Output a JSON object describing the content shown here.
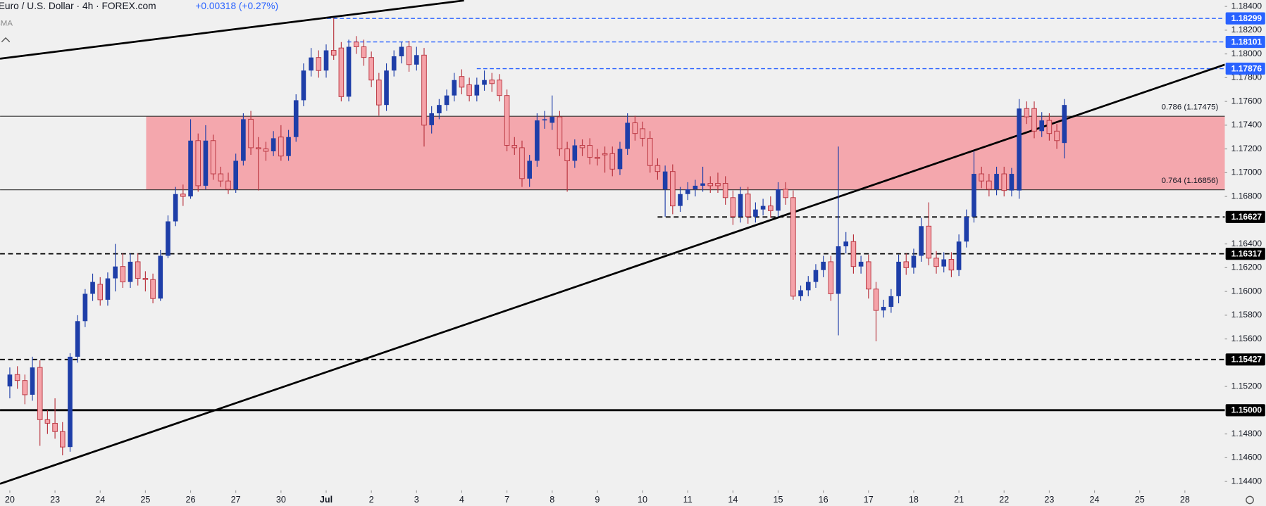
{
  "header": {
    "title": "Euro / U.S. Dollar · 4h · FOREX.com",
    "change": "+0.00318 (+0.27%)",
    "indicator": "SMA"
  },
  "chart_data": {
    "type": "candlestick",
    "up_color": "#1e3ea8",
    "down_color": "#f5a3a9",
    "down_edge": "#b8323d",
    "ohlc": [
      [
        1.152,
        1.1536,
        1.151,
        1.153
      ],
      [
        1.153,
        1.1537,
        1.1518,
        1.1525
      ],
      [
        1.1525,
        1.153,
        1.1505,
        1.1513
      ],
      [
        1.1513,
        1.1545,
        1.1508,
        1.1536
      ],
      [
        1.1536,
        1.1542,
        1.147,
        1.1492
      ],
      [
        1.1492,
        1.15,
        1.148,
        1.1489
      ],
      [
        1.1489,
        1.151,
        1.1476,
        1.1482
      ],
      [
        1.1482,
        1.149,
        1.1462,
        1.1469
      ],
      [
        1.1469,
        1.1548,
        1.1465,
        1.1545
      ],
      [
        1.1545,
        1.158,
        1.154,
        1.1575
      ],
      [
        1.1575,
        1.1602,
        1.157,
        1.1598
      ],
      [
        1.1598,
        1.1615,
        1.1592,
        1.1608
      ],
      [
        1.1606,
        1.1612,
        1.1588,
        1.1593
      ],
      [
        1.1593,
        1.1616,
        1.1588,
        1.1611
      ],
      [
        1.1611,
        1.164,
        1.16,
        1.1621
      ],
      [
        1.1621,
        1.1632,
        1.1603,
        1.1608
      ],
      [
        1.1608,
        1.1632,
        1.1603,
        1.1625
      ],
      [
        1.1625,
        1.1632,
        1.1605,
        1.1611
      ],
      [
        1.1611,
        1.1617,
        1.16,
        1.161
      ],
      [
        1.161,
        1.1615,
        1.159,
        1.1594
      ],
      [
        1.1594,
        1.1635,
        1.1592,
        1.163
      ],
      [
        1.163,
        1.1664,
        1.1628,
        1.1659
      ],
      [
        1.1659,
        1.1688,
        1.1655,
        1.1682
      ],
      [
        1.1682,
        1.169,
        1.1672,
        1.168
      ],
      [
        1.168,
        1.1745,
        1.1678,
        1.1727
      ],
      [
        1.1727,
        1.1733,
        1.1684,
        1.1689
      ],
      [
        1.1689,
        1.174,
        1.1686,
        1.1727
      ],
      [
        1.1727,
        1.1732,
        1.1694,
        1.1699
      ],
      [
        1.1699,
        1.1705,
        1.1688,
        1.1693
      ],
      [
        1.1693,
        1.17,
        1.1682,
        1.1686
      ],
      [
        1.1686,
        1.1716,
        1.1683,
        1.171
      ],
      [
        1.171,
        1.175,
        1.1706,
        1.1745
      ],
      [
        1.1745,
        1.1752,
        1.1715,
        1.1721
      ],
      [
        1.1721,
        1.173,
        1.1685,
        1.172
      ],
      [
        1.172,
        1.1726,
        1.171,
        1.1718
      ],
      [
        1.1718,
        1.1735,
        1.1714,
        1.1729
      ],
      [
        1.173,
        1.174,
        1.171,
        1.1714
      ],
      [
        1.1714,
        1.1736,
        1.171,
        1.173
      ],
      [
        1.173,
        1.1766,
        1.1726,
        1.1761
      ],
      [
        1.1761,
        1.1792,
        1.1756,
        1.1786
      ],
      [
        1.1786,
        1.1805,
        1.1781,
        1.1797
      ],
      [
        1.1797,
        1.1803,
        1.178,
        1.1786
      ],
      [
        1.1786,
        1.1808,
        1.178,
        1.1803
      ],
      [
        1.1803,
        1.183,
        1.1795,
        1.1799
      ],
      [
        1.1805,
        1.181,
        1.176,
        1.1764
      ],
      [
        1.1764,
        1.1812,
        1.176,
        1.1806
      ],
      [
        1.181,
        1.1815,
        1.18,
        1.1806
      ],
      [
        1.1806,
        1.1812,
        1.179,
        1.1797
      ],
      [
        1.1797,
        1.1802,
        1.1772,
        1.1778
      ],
      [
        1.1778,
        1.1784,
        1.1748,
        1.1757
      ],
      [
        1.1757,
        1.1792,
        1.1752,
        1.1786
      ],
      [
        1.1786,
        1.1803,
        1.1781,
        1.1798
      ],
      [
        1.1798,
        1.181,
        1.1792,
        1.1806
      ],
      [
        1.1806,
        1.1811,
        1.1785,
        1.1791
      ],
      [
        1.1791,
        1.1806,
        1.1786,
        1.1799
      ],
      [
        1.1799,
        1.1805,
        1.1722,
        1.174
      ],
      [
        1.174,
        1.1756,
        1.1733,
        1.175
      ],
      [
        1.175,
        1.1762,
        1.1745,
        1.1757
      ],
      [
        1.1757,
        1.177,
        1.1752,
        1.1765
      ],
      [
        1.1765,
        1.1784,
        1.176,
        1.1778
      ],
      [
        1.1781,
        1.1787,
        1.1766,
        1.1772
      ],
      [
        1.1774,
        1.178,
        1.176,
        1.1765
      ],
      [
        1.1765,
        1.178,
        1.176,
        1.1774
      ],
      [
        1.1774,
        1.1786,
        1.1769,
        1.1778
      ],
      [
        1.1778,
        1.1784,
        1.1768,
        1.1775
      ],
      [
        1.1778,
        1.1783,
        1.176,
        1.1765
      ],
      [
        1.1765,
        1.177,
        1.1718,
        1.1723
      ],
      [
        1.1723,
        1.173,
        1.1715,
        1.1721
      ],
      [
        1.1721,
        1.1727,
        1.1688,
        1.1695
      ],
      [
        1.1695,
        1.1715,
        1.1688,
        1.171
      ],
      [
        1.171,
        1.175,
        1.1705,
        1.1744
      ],
      [
        1.1744,
        1.1752,
        1.1737,
        1.1745
      ],
      [
        1.1742,
        1.1765,
        1.1736,
        1.1747
      ],
      [
        1.1747,
        1.1752,
        1.1714,
        1.172
      ],
      [
        1.172,
        1.1726,
        1.1684,
        1.171
      ],
      [
        1.171,
        1.1728,
        1.1704,
        1.1723
      ],
      [
        1.1723,
        1.1728,
        1.1714,
        1.1721
      ],
      [
        1.1723,
        1.1729,
        1.1707,
        1.1713
      ],
      [
        1.1713,
        1.172,
        1.1706,
        1.1712
      ],
      [
        1.1716,
        1.1722,
        1.17,
        1.1715
      ],
      [
        1.1716,
        1.1722,
        1.1697,
        1.1703
      ],
      [
        1.1703,
        1.1726,
        1.1698,
        1.172
      ],
      [
        1.172,
        1.175,
        1.1715,
        1.1742
      ],
      [
        1.1742,
        1.1748,
        1.1727,
        1.1733
      ],
      [
        1.1737,
        1.1743,
        1.1722,
        1.1729
      ],
      [
        1.1729,
        1.1735,
        1.17,
        1.1706
      ],
      [
        1.1706,
        1.1712,
        1.1694,
        1.1701
      ],
      [
        1.1686,
        1.1706,
        1.1663,
        1.1701
      ],
      [
        1.1701,
        1.1707,
        1.1665,
        1.1672
      ],
      [
        1.1672,
        1.1688,
        1.1667,
        1.1682
      ],
      [
        1.1682,
        1.1692,
        1.1677,
        1.1686
      ],
      [
        1.1686,
        1.1694,
        1.168,
        1.1689
      ],
      [
        1.1689,
        1.1705,
        1.1684,
        1.1691
      ],
      [
        1.1691,
        1.1697,
        1.1683,
        1.1689
      ],
      [
        1.1691,
        1.17,
        1.1683,
        1.1689
      ],
      [
        1.1691,
        1.1697,
        1.1673,
        1.1679
      ],
      [
        1.1679,
        1.1685,
        1.1656,
        1.1663
      ],
      [
        1.1663,
        1.1688,
        1.1658,
        1.1682
      ],
      [
        1.1682,
        1.1688,
        1.1657,
        1.1663
      ],
      [
        1.1663,
        1.1675,
        1.1658,
        1.1669
      ],
      [
        1.1669,
        1.1678,
        1.1664,
        1.1672
      ],
      [
        1.1672,
        1.168,
        1.1662,
        1.1668
      ],
      [
        1.1668,
        1.1692,
        1.1663,
        1.1686
      ],
      [
        1.1686,
        1.1692,
        1.1673,
        1.1679
      ],
      [
        1.1679,
        1.1685,
        1.1593,
        1.1596
      ],
      [
        1.1596,
        1.1605,
        1.1592,
        1.1601
      ],
      [
        1.1601,
        1.1613,
        1.1596,
        1.1608
      ],
      [
        1.1608,
        1.1623,
        1.1603,
        1.1618
      ],
      [
        1.1618,
        1.163,
        1.1612,
        1.1625
      ],
      [
        1.1625,
        1.163,
        1.1592,
        1.1598
      ],
      [
        1.1598,
        1.1722,
        1.1563,
        1.1638
      ],
      [
        1.1638,
        1.165,
        1.1632,
        1.1642
      ],
      [
        1.1642,
        1.1648,
        1.1615,
        1.1621
      ],
      [
        1.1621,
        1.163,
        1.1615,
        1.1625
      ],
      [
        1.1625,
        1.1631,
        1.1594,
        1.1602
      ],
      [
        1.1602,
        1.1608,
        1.1558,
        1.1584
      ],
      [
        1.1584,
        1.1593,
        1.1578,
        1.1587
      ],
      [
        1.1587,
        1.1602,
        1.1582,
        1.1596
      ],
      [
        1.1596,
        1.1631,
        1.159,
        1.1625
      ],
      [
        1.1625,
        1.1632,
        1.1614,
        1.162
      ],
      [
        1.162,
        1.1636,
        1.1615,
        1.163
      ],
      [
        1.163,
        1.1662,
        1.1625,
        1.1655
      ],
      [
        1.1655,
        1.1675,
        1.1622,
        1.1628
      ],
      [
        1.1628,
        1.1634,
        1.1615,
        1.1621
      ],
      [
        1.1621,
        1.1633,
        1.1616,
        1.1627
      ],
      [
        1.1627,
        1.1633,
        1.1612,
        1.1618
      ],
      [
        1.1618,
        1.1648,
        1.1613,
        1.1642
      ],
      [
        1.1642,
        1.1669,
        1.1637,
        1.1663
      ],
      [
        1.1663,
        1.1718,
        1.1658,
        1.1699
      ],
      [
        1.1699,
        1.1705,
        1.1687,
        1.1693
      ],
      [
        1.1693,
        1.1699,
        1.168,
        1.1686
      ],
      [
        1.1686,
        1.1705,
        1.1681,
        1.1699
      ],
      [
        1.1699,
        1.1705,
        1.168,
        1.1685
      ],
      [
        1.1685,
        1.1704,
        1.168,
        1.1699
      ],
      [
        1.1685,
        1.1762,
        1.1678,
        1.1754
      ],
      [
        1.1754,
        1.176,
        1.1741,
        1.1747
      ],
      [
        1.1754,
        1.176,
        1.1729,
        1.1735
      ],
      [
        1.1735,
        1.1751,
        1.173,
        1.1744
      ],
      [
        1.1744,
        1.175,
        1.1727,
        1.1733
      ],
      [
        1.1735,
        1.1741,
        1.172,
        1.1727
      ],
      [
        1.1725,
        1.1762,
        1.1712,
        1.1757
      ]
    ],
    "xlim": [
      -1.3,
      161.3
    ],
    "ylim": [
      1.14325,
      1.18454
    ],
    "xticks": [
      {
        "value": 0,
        "label": "20"
      },
      {
        "value": 6,
        "label": "23"
      },
      {
        "value": 12,
        "label": "24"
      },
      {
        "value": 18,
        "label": "25"
      },
      {
        "value": 24,
        "label": "26"
      },
      {
        "value": 30,
        "label": "27"
      },
      {
        "value": 36,
        "label": "30"
      },
      {
        "value": 42,
        "label": "Jul"
      },
      {
        "value": 48,
        "label": "2"
      },
      {
        "value": 54,
        "label": "3"
      },
      {
        "value": 60,
        "label": "4"
      },
      {
        "value": 66,
        "label": "7"
      },
      {
        "value": 72,
        "label": "8"
      },
      {
        "value": 78,
        "label": "9"
      },
      {
        "value": 84,
        "label": "10"
      },
      {
        "value": 90,
        "label": "11"
      },
      {
        "value": 96,
        "label": "14"
      },
      {
        "value": 102,
        "label": "15"
      },
      {
        "value": 108,
        "label": "16"
      },
      {
        "value": 114,
        "label": "17"
      },
      {
        "value": 120,
        "label": "18"
      },
      {
        "value": 126,
        "label": "21"
      },
      {
        "value": 132,
        "label": "22"
      },
      {
        "value": 138,
        "label": "23"
      },
      {
        "value": 144,
        "label": "24"
      },
      {
        "value": 150,
        "label": "25"
      },
      {
        "value": 156,
        "label": "28"
      }
    ],
    "yticks": [
      {
        "value": 1.184,
        "label": "1.18400"
      },
      {
        "value": 1.182,
        "label": "1.18200"
      },
      {
        "value": 1.18,
        "label": "1.18000"
      },
      {
        "value": 1.178,
        "label": "1.17800"
      },
      {
        "value": 1.176,
        "label": "1.17600"
      },
      {
        "value": 1.174,
        "label": "1.17400"
      },
      {
        "value": 1.172,
        "label": "1.17200"
      },
      {
        "value": 1.17,
        "label": "1.17000"
      },
      {
        "value": 1.168,
        "label": "1.16800"
      },
      {
        "value": 1.164,
        "label": "1.16400"
      },
      {
        "value": 1.162,
        "label": "1.16200"
      },
      {
        "value": 1.16,
        "label": "1.16000"
      },
      {
        "value": 1.158,
        "label": "1.15800"
      },
      {
        "value": 1.156,
        "label": "1.15600"
      },
      {
        "value": 1.152,
        "label": "1.15200"
      },
      {
        "value": 1.148,
        "label": "1.14800"
      },
      {
        "value": 1.146,
        "label": "1.14600"
      },
      {
        "value": 1.144,
        "label": "1.14400"
      }
    ],
    "zone": {
      "from": 18.1,
      "low": 1.16856,
      "high": 1.17475,
      "color": "#f4a7ad"
    },
    "fib_levels": [
      {
        "value": 1.17475,
        "label": "0.786 (1.17475)"
      },
      {
        "value": 1.16856,
        "label": "0.764 (1.16856)"
      }
    ],
    "levels": [
      {
        "value": 1.18299,
        "from": 42.1,
        "style": "dashed",
        "color": "#2962ff"
      },
      {
        "value": 1.18101,
        "from": 44.8,
        "style": "dashed",
        "color": "#2962ff"
      },
      {
        "value": 1.17876,
        "from": 62,
        "style": "dashed",
        "color": "#2962ff"
      },
      {
        "value": 1.16627,
        "from": 86,
        "style": "dashed",
        "color": "#000000"
      },
      {
        "value": 1.16317,
        "style": "dashed",
        "color": "#000000"
      },
      {
        "value": 1.15427,
        "style": "dashed",
        "color": "#000000"
      },
      {
        "value": 1.15,
        "label": "1.15000",
        "style": "solid",
        "color": "#000000"
      }
    ],
    "trendlines": [
      {
        "points": [
          [
            -1.3,
            1.1796
          ],
          [
            60.3,
            1.1845
          ]
        ]
      },
      {
        "points": [
          [
            -1.3,
            1.1438
          ],
          [
            161.3,
            1.1791
          ]
        ]
      }
    ]
  }
}
